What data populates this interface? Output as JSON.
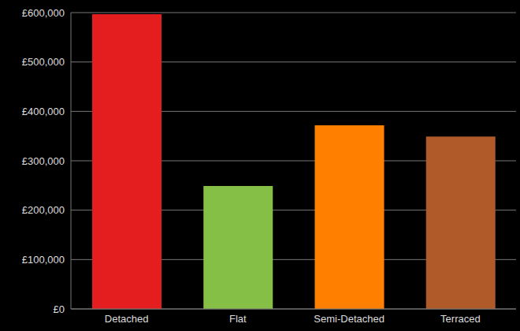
{
  "chart_data": {
    "type": "bar",
    "categories": [
      "Detached",
      "Flat",
      "Semi-Detached",
      "Terraced"
    ],
    "values": [
      597000,
      249000,
      372000,
      349000
    ],
    "colors": [
      "#e41e1e",
      "#86bf45",
      "#ff8000",
      "#b05a2a"
    ],
    "ylim": [
      0,
      600000
    ],
    "yticks": [
      {
        "value": 0,
        "label": "£0"
      },
      {
        "value": 100000,
        "label": "£100,000"
      },
      {
        "value": 200000,
        "label": "£200,000"
      },
      {
        "value": 300000,
        "label": "£300,000"
      },
      {
        "value": 400000,
        "label": "£400,000"
      },
      {
        "value": 500000,
        "label": "£500,000"
      },
      {
        "value": 600000,
        "label": "£600,000"
      }
    ],
    "grid": true
  }
}
